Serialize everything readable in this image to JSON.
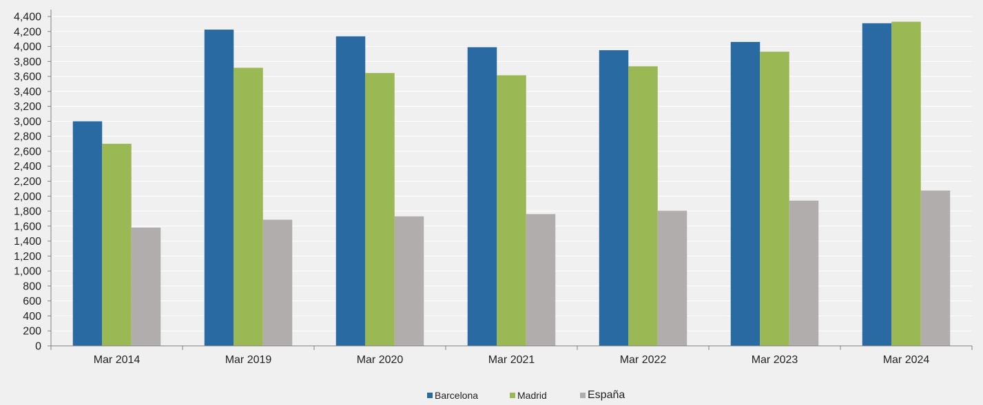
{
  "chart_data": {
    "type": "bar",
    "categories": [
      "Mar 2014",
      "Mar 2019",
      "Mar 2020",
      "Mar 2021",
      "Mar 2022",
      "Mar 2023",
      "Mar 2024"
    ],
    "series": [
      {
        "name": "Barcelona",
        "color": "#2a6aa2",
        "values": [
          3000,
          4225,
          4135,
          3990,
          3950,
          4060,
          4310
        ]
      },
      {
        "name": "Madrid",
        "color": "#9ab854",
        "values": [
          2700,
          3715,
          3645,
          3615,
          3735,
          3930,
          4330
        ]
      },
      {
        "name": "España",
        "color": "#b1adac",
        "values": [
          1580,
          1685,
          1730,
          1760,
          1805,
          1940,
          2075
        ]
      }
    ],
    "ylim": [
      0,
      4400
    ],
    "y_step": 200,
    "grid": true,
    "legend_position": "bottom"
  }
}
